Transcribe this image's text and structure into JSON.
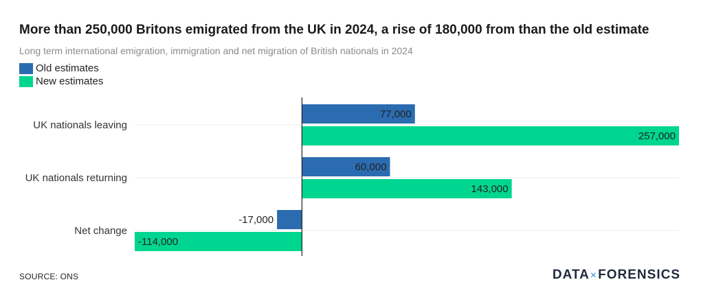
{
  "chart_data": {
    "type": "bar",
    "orientation": "horizontal",
    "title": "More than 250,000 Britons emigrated from the UK in 2024, a rise of 180,000 from than the old estimate",
    "subtitle": "Long term international emigration, immigration and net migration of British nationals in 2024",
    "categories": [
      "UK nationals leaving",
      "UK nationals returning",
      "Net change"
    ],
    "series": [
      {
        "name": "Old estimates",
        "values": [
          77000,
          60000,
          -17000
        ],
        "labels": [
          "77,000",
          "60,000",
          "-17,000"
        ],
        "color": "#2b6cb0"
      },
      {
        "name": "New estimates",
        "values": [
          257000,
          143000,
          -114000
        ],
        "labels": [
          "257,000",
          "143,000",
          "-114,000"
        ],
        "color": "#00d68f"
      }
    ],
    "xlim": [
      -114000,
      257000
    ],
    "grid": true,
    "legend": "top-left"
  },
  "source": "SOURCE: ONS",
  "logo": {
    "left": "DATA",
    "sep": "×",
    "right": "FORENSICS"
  }
}
